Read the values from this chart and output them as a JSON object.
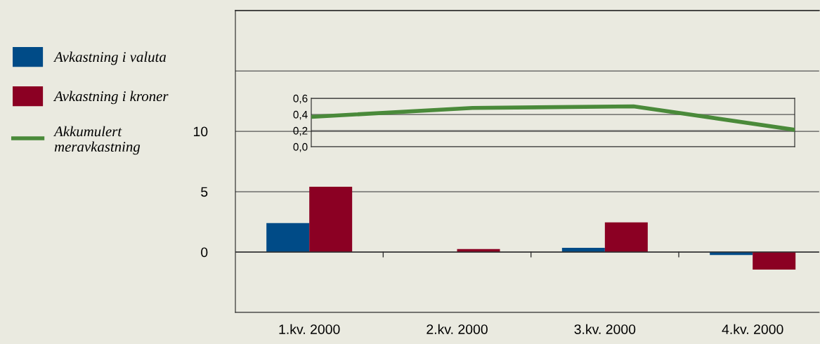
{
  "chart_data": [
    {
      "type": "bar",
      "categories": [
        "1.kv. 2000",
        "2.kv. 2000",
        "3.kv. 2000",
        "4.kv. 2000"
      ],
      "series": [
        {
          "name": "Avkastning i valuta",
          "color": "#004b87",
          "values": [
            2.4,
            0.0,
            0.35,
            -0.25
          ]
        },
        {
          "name": "Avkastning i kroner",
          "color": "#8b0023",
          "values": [
            5.4,
            0.25,
            2.45,
            -1.45
          ]
        }
      ],
      "ylim": [
        -5,
        20
      ],
      "yticks": [
        {
          "value": -5,
          "label": null
        },
        0,
        5,
        10,
        {
          "value": 15,
          "label": null
        },
        {
          "value": 20,
          "label": null
        }
      ],
      "grid": "y",
      "legend": "left"
    },
    {
      "type": "line",
      "categories": [
        null,
        null,
        null,
        null
      ],
      "series": [
        {
          "name": "Akkumulert\nmeravkastning",
          "color": "#4a8a3a",
          "values": [
            0.37,
            0.48,
            0.5,
            0.21
          ]
        }
      ],
      "ylim": [
        0,
        0.6
      ],
      "yticks": [
        {
          "value": 0,
          "label": "0,0"
        },
        {
          "value": 0.2,
          "label": "0,2"
        },
        {
          "value": 0.4,
          "label": "0,4"
        },
        {
          "value": 0.6,
          "label": "0,6"
        }
      ],
      "grid": "y",
      "legend": "left"
    }
  ]
}
